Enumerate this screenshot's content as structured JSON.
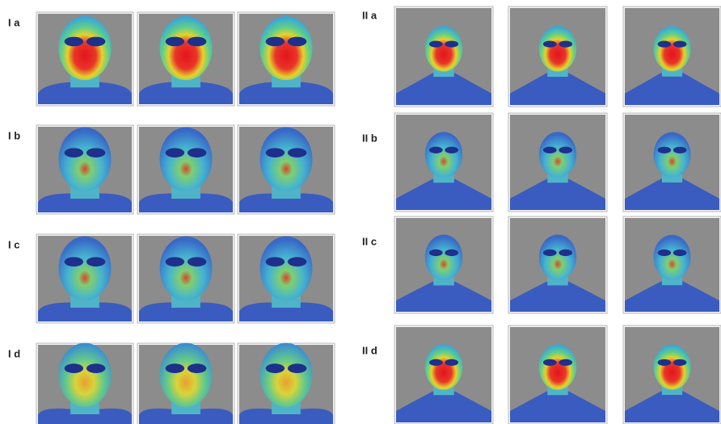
{
  "left_rows": [
    {
      "label": "I a"
    },
    {
      "label": "I b"
    },
    {
      "label": "I c"
    },
    {
      "label": "I d"
    }
  ],
  "right_rows": [
    {
      "label": "II a"
    },
    {
      "label": "II b"
    },
    {
      "label": "II c"
    },
    {
      "label": "II d"
    }
  ]
}
